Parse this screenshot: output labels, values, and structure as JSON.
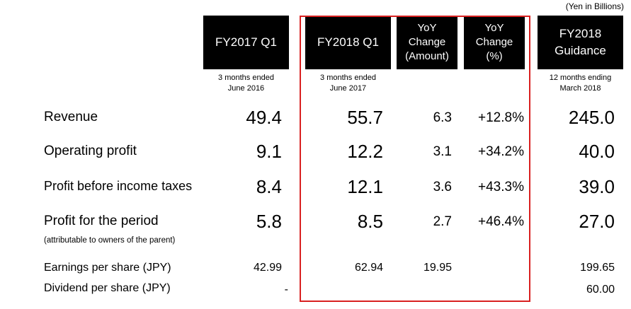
{
  "unit_note": "(Yen in Billions)",
  "columns": [
    {
      "header": "FY2017 Q1",
      "sub": "3 months ended\nJune 2016"
    },
    {
      "header": "FY2018 Q1",
      "sub": "3 months ended\nJune 2017"
    },
    {
      "header": "YoY\nChange\n(Amount)",
      "sub": ""
    },
    {
      "header": "YoY\nChange\n(%)",
      "sub": ""
    },
    {
      "header": "FY2018\nGuidance",
      "sub": "12 months ending\nMarch 2018"
    }
  ],
  "rows": [
    {
      "label": "Revenue",
      "note": "",
      "values": [
        "49.4",
        "55.7",
        "6.3",
        "+12.8%",
        "245.0"
      ]
    },
    {
      "label": "Operating profit",
      "note": "",
      "values": [
        "9.1",
        "12.2",
        "3.1",
        "+34.2%",
        "40.0"
      ]
    },
    {
      "label": "Profit before income taxes",
      "note": "",
      "values": [
        "8.4",
        "12.1",
        "3.6",
        "+43.3%",
        "39.0"
      ]
    },
    {
      "label": "Profit for the period",
      "note": "(attributable to owners of the parent)",
      "values": [
        "5.8",
        "8.5",
        "2.7",
        "+46.4%",
        "27.0"
      ]
    },
    {
      "label": "Earnings per share (JPY)",
      "note": "",
      "values": [
        "42.99",
        "62.94",
        "19.95",
        "",
        "199.65"
      ]
    },
    {
      "label": "Dividend per share (JPY)",
      "note": "",
      "values": [
        "-",
        "",
        "",
        "",
        "60.00"
      ]
    }
  ],
  "highlight_color": "#d92020"
}
